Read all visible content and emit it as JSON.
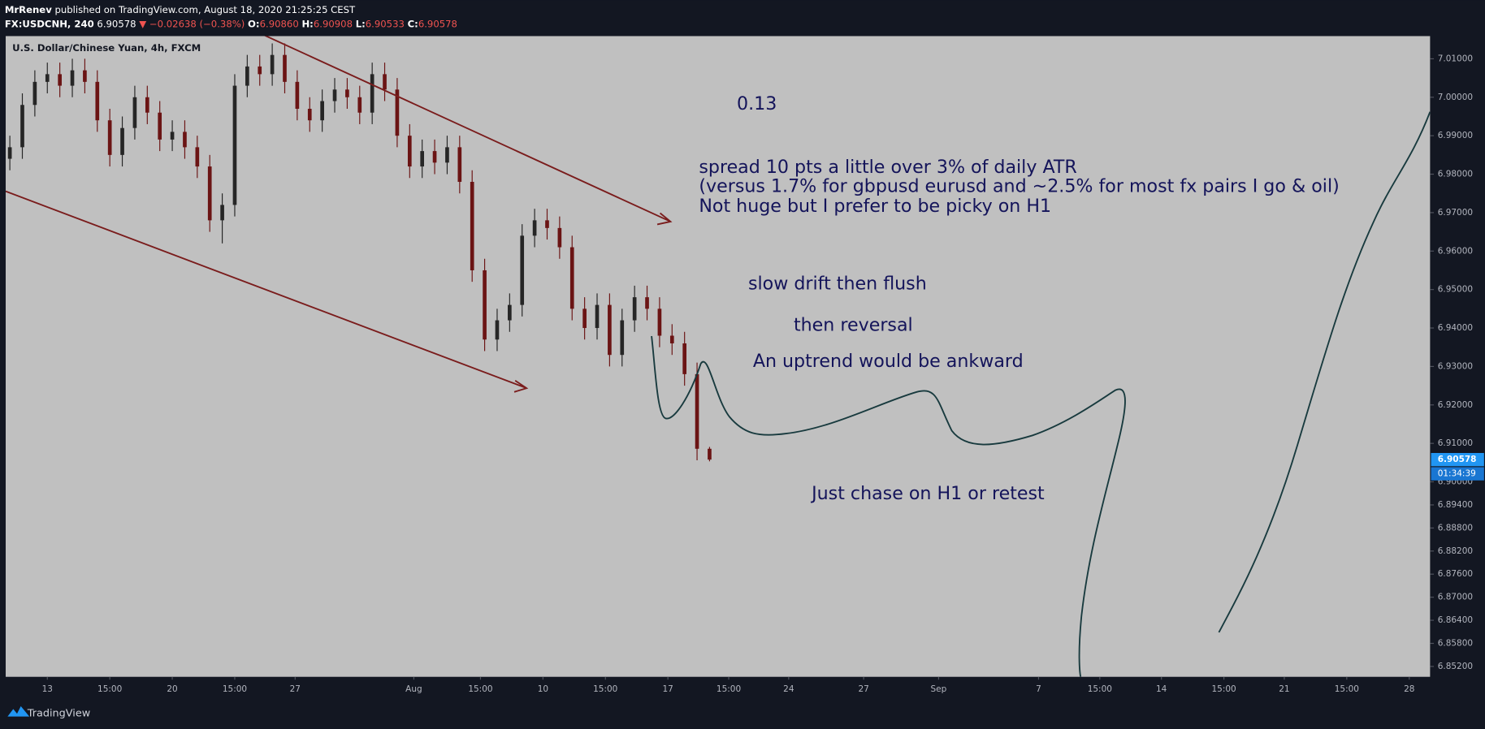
{
  "chart_data": {
    "type": "candlestick",
    "header": {
      "author": "MrRenev",
      "published": "published on TradingView.com, August 18, 2020 21:25:25 CEST",
      "symbol": "FX:USDCNH, 240",
      "last": "6.90578",
      "change": "▼ −0.02638 (−0.38%)",
      "fields": [
        {
          "label": "O:",
          "value": "6.90860"
        },
        {
          "label": "H:",
          "value": "6.90908"
        },
        {
          "label": "L:",
          "value": "6.90533"
        },
        {
          "label": "C:",
          "value": "6.90578"
        }
      ]
    },
    "instrument": "U.S. Dollar/Chinese Yuan, 4h, FXCM",
    "countdown": "01:34:39",
    "up_color": "#262626",
    "down_color": "#6b1414",
    "x": [
      1,
      4,
      7,
      10,
      13,
      16,
      19,
      22,
      25,
      28,
      31,
      34,
      37,
      40,
      43,
      46,
      49,
      52,
      55,
      58,
      61,
      64,
      67,
      70,
      73,
      76,
      79,
      82,
      85,
      88,
      91,
      94,
      97,
      100,
      103,
      106,
      109,
      112,
      115,
      118,
      121,
      124,
      127,
      130,
      133,
      136,
      139,
      142,
      145,
      148,
      151,
      154,
      157,
      160,
      163,
      166,
      169
    ],
    "open": [
      6.984,
      6.987,
      6.998,
      7.004,
      7.006,
      7.003,
      7.007,
      7.004,
      6.994,
      6.985,
      6.992,
      7.0,
      6.996,
      6.989,
      6.991,
      6.987,
      6.982,
      6.968,
      6.972,
      7.003,
      7.008,
      7.006,
      7.011,
      7.004,
      6.997,
      6.994,
      6.999,
      7.002,
      7.0,
      6.996,
      7.006,
      7.002,
      6.99,
      6.982,
      6.986,
      6.983,
      6.987,
      6.978,
      6.955,
      6.937,
      6.942,
      6.946,
      6.964,
      6.968,
      6.966,
      6.961,
      6.945,
      6.94,
      6.946,
      6.933,
      6.942,
      6.948,
      6.945,
      6.938,
      6.936,
      6.928,
      6.9086
    ],
    "high": [
      6.99,
      7.001,
      7.007,
      7.009,
      7.009,
      7.01,
      7.01,
      7.007,
      6.997,
      6.995,
      7.003,
      7.003,
      6.999,
      6.994,
      6.994,
      6.99,
      6.985,
      6.975,
      7.006,
      7.011,
      7.011,
      7.014,
      7.014,
      7.007,
      7.0,
      7.002,
      7.005,
      7.005,
      7.003,
      7.009,
      7.009,
      7.005,
      6.993,
      6.989,
      6.989,
      6.99,
      6.99,
      6.981,
      6.958,
      6.945,
      6.949,
      6.967,
      6.971,
      6.971,
      6.969,
      6.964,
      6.948,
      6.949,
      6.949,
      6.945,
      6.951,
      6.951,
      6.948,
      6.941,
      6.939,
      6.931,
      6.90908
    ],
    "low": [
      6.981,
      6.984,
      6.995,
      7.001,
      7.0,
      7.0,
      7.001,
      6.991,
      6.982,
      6.982,
      6.989,
      6.993,
      6.986,
      6.986,
      6.984,
      6.979,
      6.965,
      6.962,
      6.969,
      7.0,
      7.003,
      7.003,
      7.001,
      6.994,
      6.991,
      6.991,
      6.996,
      6.997,
      6.993,
      6.993,
      6.999,
      6.987,
      6.979,
      6.979,
      6.98,
      6.98,
      6.975,
      6.952,
      6.934,
      6.934,
      6.939,
      6.943,
      6.961,
      6.963,
      6.958,
      6.942,
      6.937,
      6.937,
      6.93,
      6.93,
      6.939,
      6.942,
      6.935,
      6.933,
      6.925,
      6.9056,
      6.90533
    ],
    "close": [
      6.987,
      6.998,
      7.004,
      7.006,
      7.003,
      7.007,
      7.004,
      6.994,
      6.985,
      6.992,
      7.0,
      6.996,
      6.989,
      6.991,
      6.987,
      6.982,
      6.968,
      6.972,
      7.003,
      7.008,
      7.006,
      7.011,
      7.004,
      6.997,
      6.994,
      6.999,
      7.002,
      7.0,
      6.996,
      7.006,
      7.002,
      6.99,
      6.982,
      6.986,
      6.983,
      6.987,
      6.978,
      6.955,
      6.937,
      6.942,
      6.946,
      6.964,
      6.968,
      6.966,
      6.961,
      6.945,
      6.94,
      6.946,
      6.933,
      6.942,
      6.948,
      6.945,
      6.938,
      6.936,
      6.928,
      6.9086,
      6.90578
    ],
    "xlim": [
      0,
      342
    ],
    "xticks": [
      {
        "value": 10,
        "label": "13"
      },
      {
        "value": 25,
        "label": "15:00"
      },
      {
        "value": 40,
        "label": "20"
      },
      {
        "value": 55,
        "label": "15:00"
      },
      {
        "value": 69.5,
        "label": "27"
      },
      {
        "value": 98,
        "label": "Aug"
      },
      {
        "value": 114,
        "label": "15:00"
      },
      {
        "value": 129,
        "label": "10"
      },
      {
        "value": 144,
        "label": "15:00"
      },
      {
        "value": 159,
        "label": "17"
      },
      {
        "value": 173.6,
        "label": "15:00"
      },
      {
        "value": 188,
        "label": "24"
      },
      {
        "value": 206,
        "label": "27"
      },
      {
        "value": 224,
        "label": "Sep"
      },
      {
        "value": 248,
        "label": "7"
      },
      {
        "value": 262.7,
        "label": "15:00"
      },
      {
        "value": 277.5,
        "label": "14"
      },
      {
        "value": 292.5,
        "label": "15:00"
      },
      {
        "value": 307,
        "label": "21"
      },
      {
        "value": 322,
        "label": "15:00"
      },
      {
        "value": 337,
        "label": "28"
      }
    ],
    "ylim": [
      6.8493,
      7.0159
    ],
    "yticks": [
      {
        "value": 7.01,
        "label": "7.01000"
      },
      {
        "value": 7.0,
        "label": "7.00000"
      },
      {
        "value": 6.99,
        "label": "6.99000"
      },
      {
        "value": 6.98,
        "label": "6.98000"
      },
      {
        "value": 6.97,
        "label": "6.97000"
      },
      {
        "value": 6.96,
        "label": "6.96000"
      },
      {
        "value": 6.95,
        "label": "6.95000"
      },
      {
        "value": 6.94,
        "label": "6.94000"
      },
      {
        "value": 6.93,
        "label": "6.93000"
      },
      {
        "value": 6.92,
        "label": "6.92000"
      },
      {
        "value": 6.91,
        "label": "6.91000"
      },
      {
        "value": 6.9,
        "label": "6.90000"
      },
      {
        "value": 6.894,
        "label": "6.89400"
      },
      {
        "value": 6.888,
        "label": "6.88800"
      },
      {
        "value": 6.882,
        "label": "6.88200"
      },
      {
        "value": 6.876,
        "label": "6.87600"
      },
      {
        "value": 6.87,
        "label": "6.87000"
      },
      {
        "value": 6.864,
        "label": "6.86400"
      },
      {
        "value": 6.858,
        "label": "6.85800"
      },
      {
        "value": 6.852,
        "label": "6.85200"
      }
    ],
    "grid": false,
    "annotations": [
      "0.13",
      "spread 10 pts a little over 3% of daily ATR",
      "(versus 1.7% for gbpusd eurusd and ~2.5% for most fx pairs I go & oil)",
      "Not huge but I prefer to be picky on H1",
      "slow drift then flush",
      "then reversal",
      "An uptrend would be ankward",
      "Just chase on H1 or retest"
    ]
  },
  "footer": {
    "brand": "TradingView"
  }
}
